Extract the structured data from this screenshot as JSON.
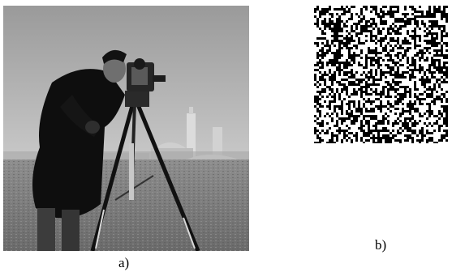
{
  "figure": {
    "panel_a": {
      "caption": "a)"
    },
    "panel_b": {
      "caption": "b)"
    }
  }
}
